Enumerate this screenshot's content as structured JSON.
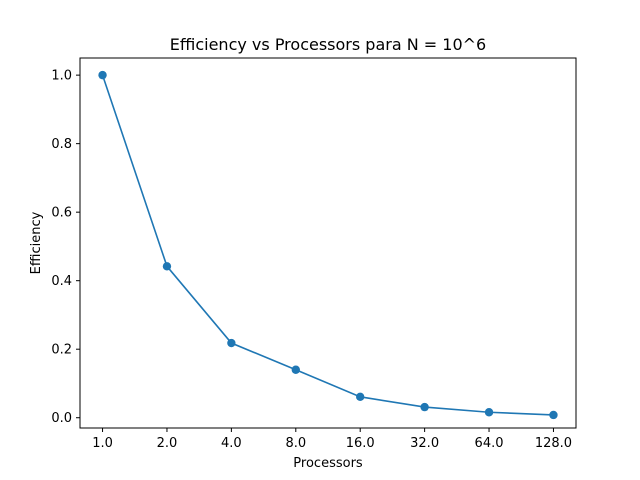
{
  "chart_data": {
    "type": "line",
    "title": "Efficiency vs Processors para N = 10^6",
    "xlabel": "Processors",
    "ylabel": "Efficiency",
    "x_scale": "log2",
    "x": [
      1.0,
      2.0,
      4.0,
      8.0,
      16.0,
      32.0,
      64.0,
      128.0
    ],
    "x_tick_labels": [
      "1.0",
      "2.0",
      "4.0",
      "8.0",
      "16.0",
      "32.0",
      "64.0",
      "128.0"
    ],
    "y_ticks": [
      0.0,
      0.2,
      0.4,
      0.6,
      0.8,
      1.0
    ],
    "y_tick_labels": [
      "0.0",
      "0.2",
      "0.4",
      "0.6",
      "0.8",
      "1.0"
    ],
    "ylim": [
      -0.03,
      1.05
    ],
    "grid": false,
    "series": [
      {
        "values": [
          1.0,
          0.442,
          0.218,
          0.14,
          0.061,
          0.031,
          0.016,
          0.008
        ],
        "color": "#1f77b4",
        "marker": "circle"
      }
    ]
  }
}
